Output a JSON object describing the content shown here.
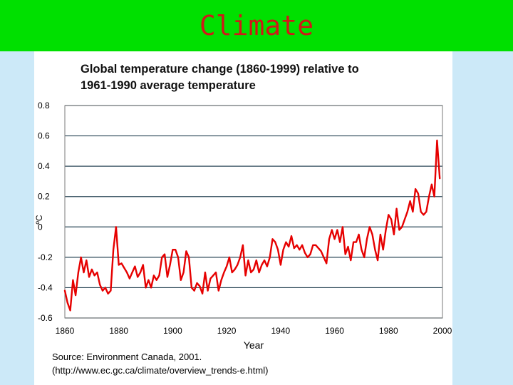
{
  "slide": {
    "title": "Climate"
  },
  "caption": {
    "source": "Source: Environment Canada, 2001.",
    "url": "(http://www.ec.gc.ca/climate/overview_trends-e.html)"
  },
  "colors": {
    "title_bar": "#00e000",
    "title_text": "#d01818",
    "series": "#e60000",
    "background": "#cce9f8"
  },
  "chart_data": {
    "type": "line",
    "title": "Global temperature change (1860-1999) relative to 1961-1990 average temperature",
    "title_lines": [
      "Global temperature change (1860-1999) relative to",
      "1961-1990 average temperature"
    ],
    "xlabel": "Year",
    "ylabel": "ºC",
    "xlim": [
      1860,
      2000
    ],
    "ylim": [
      -0.6,
      0.8
    ],
    "xticks": [
      1860,
      1880,
      1900,
      1920,
      1940,
      1960,
      1980,
      2000
    ],
    "yticks": [
      0.8,
      0.6,
      0.4,
      0.2,
      0,
      -0.2,
      -0.4,
      -0.6
    ],
    "ytick_labels": [
      "0.8",
      "0.6",
      "0.4",
      "0.2",
      "0",
      "-0.2",
      "-0.4",
      "-0.6"
    ],
    "grid": "horizontal",
    "series": [
      {
        "x": [
          1860,
          1861,
          1862,
          1863,
          1864,
          1865,
          1866,
          1867,
          1868,
          1869,
          1870,
          1871,
          1872,
          1873,
          1874,
          1875,
          1876,
          1877,
          1878,
          1879,
          1880,
          1881,
          1882,
          1883,
          1884,
          1885,
          1886,
          1887,
          1888,
          1889,
          1890,
          1891,
          1892,
          1893,
          1894,
          1895,
          1896,
          1897,
          1898,
          1899,
          1900,
          1901,
          1902,
          1903,
          1904,
          1905,
          1906,
          1907,
          1908,
          1909,
          1910,
          1911,
          1912,
          1913,
          1914,
          1915,
          1916,
          1917,
          1918,
          1919,
          1920,
          1921,
          1922,
          1923,
          1924,
          1925,
          1926,
          1927,
          1928,
          1929,
          1930,
          1931,
          1932,
          1933,
          1934,
          1935,
          1936,
          1937,
          1938,
          1939,
          1940,
          1941,
          1942,
          1943,
          1944,
          1945,
          1946,
          1947,
          1948,
          1949,
          1950,
          1951,
          1952,
          1953,
          1954,
          1955,
          1956,
          1957,
          1958,
          1959,
          1960,
          1961,
          1962,
          1963,
          1964,
          1965,
          1966,
          1967,
          1968,
          1969,
          1970,
          1971,
          1972,
          1973,
          1974,
          1975,
          1976,
          1977,
          1978,
          1979,
          1980,
          1981,
          1982,
          1983,
          1984,
          1985,
          1986,
          1987,
          1988,
          1989,
          1990,
          1991,
          1992,
          1993,
          1994,
          1995,
          1996,
          1997,
          1998,
          1999
        ],
        "values": [
          -0.42,
          -0.5,
          -0.55,
          -0.35,
          -0.45,
          -0.3,
          -0.2,
          -0.3,
          -0.22,
          -0.33,
          -0.28,
          -0.32,
          -0.3,
          -0.38,
          -0.42,
          -0.4,
          -0.44,
          -0.42,
          -0.15,
          0.0,
          -0.25,
          -0.24,
          -0.27,
          -0.3,
          -0.34,
          -0.3,
          -0.26,
          -0.33,
          -0.3,
          -0.25,
          -0.4,
          -0.35,
          -0.4,
          -0.32,
          -0.35,
          -0.32,
          -0.2,
          -0.18,
          -0.33,
          -0.25,
          -0.15,
          -0.15,
          -0.2,
          -0.35,
          -0.3,
          -0.16,
          -0.2,
          -0.4,
          -0.42,
          -0.37,
          -0.39,
          -0.44,
          -0.3,
          -0.42,
          -0.34,
          -0.32,
          -0.3,
          -0.42,
          -0.35,
          -0.3,
          -0.26,
          -0.2,
          -0.3,
          -0.28,
          -0.25,
          -0.2,
          -0.12,
          -0.32,
          -0.22,
          -0.3,
          -0.28,
          -0.22,
          -0.3,
          -0.25,
          -0.22,
          -0.26,
          -0.2,
          -0.08,
          -0.1,
          -0.15,
          -0.25,
          -0.15,
          -0.1,
          -0.13,
          -0.06,
          -0.14,
          -0.12,
          -0.15,
          -0.12,
          -0.17,
          -0.2,
          -0.18,
          -0.12,
          -0.12,
          -0.14,
          -0.16,
          -0.2,
          -0.24,
          -0.08,
          -0.02,
          -0.08,
          -0.02,
          -0.1,
          0.0,
          -0.18,
          -0.13,
          -0.22,
          -0.1,
          -0.1,
          -0.05,
          -0.15,
          -0.2,
          -0.08,
          0.0,
          -0.05,
          -0.15,
          -0.22,
          -0.05,
          -0.15,
          -0.02,
          0.08,
          0.05,
          -0.05,
          0.12,
          -0.02,
          0.0,
          0.05,
          0.1,
          0.17,
          0.1,
          0.25,
          0.22,
          0.1,
          0.08,
          0.1,
          0.2,
          0.28,
          0.2,
          0.57,
          0.32
        ]
      }
    ]
  }
}
